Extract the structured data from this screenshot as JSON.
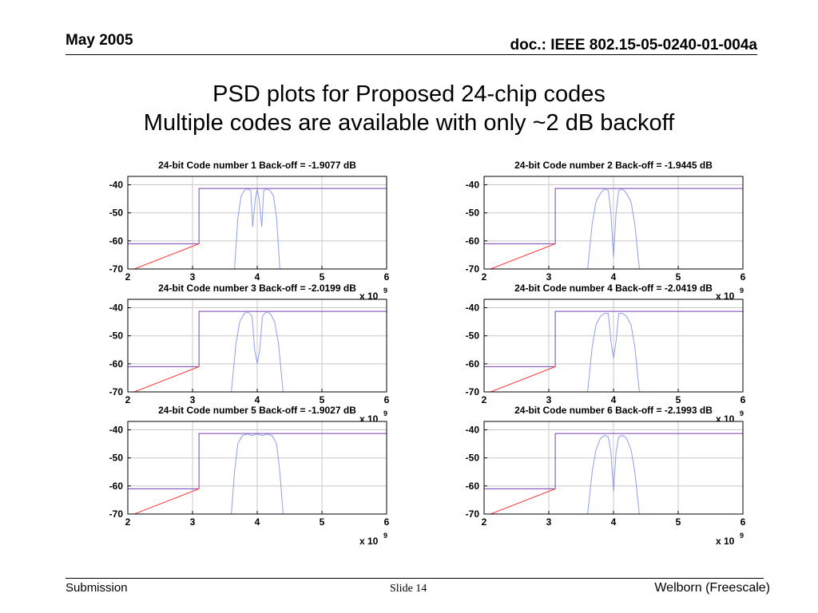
{
  "header": {
    "date": "May 2005",
    "doc": "doc.: IEEE 802.15-05-0240-01-004a"
  },
  "title": {
    "line1": "PSD plots for Proposed 24-chip codes",
    "line2": "Multiple codes are available with only ~2 dB backoff"
  },
  "footer": {
    "left": "Submission",
    "center": "Slide 14",
    "right": "Welborn (Freescale)"
  },
  "colors": {
    "psd": "#8f9ff0",
    "mask": "#7a3fb0",
    "slope": "#ff3b3b",
    "grid": "#c8c8c8"
  },
  "chart_data": [
    {
      "type": "line",
      "title": "24-bit Code number 1 Back-off = -1.9077 dB",
      "x_ticks": [
        2,
        3,
        4,
        5,
        6
      ],
      "y_ticks": [
        -40,
        -50,
        -60,
        -70
      ],
      "x_multiplier": "x 10",
      "x_exponent": "9",
      "xlim": [
        2,
        6
      ],
      "ylim": [
        -70,
        -37
      ],
      "grid": true,
      "series": [
        {
          "x": [
            2,
            3.1,
            3.1,
            6
          ],
          "y": [
            -61,
            -61,
            -41.3,
            -41.3
          ]
        },
        {
          "x": [
            2.1,
            3.1
          ],
          "y": [
            -70,
            -61
          ]
        },
        {
          "x": [
            3.65,
            3.7,
            3.75,
            3.8,
            3.85,
            3.9,
            3.93,
            3.97,
            4.0,
            4.03,
            4.07,
            4.1,
            4.15,
            4.2,
            4.25,
            4.3,
            4.35
          ],
          "y": [
            -70,
            -52,
            -44,
            -42,
            -41.5,
            -42,
            -55,
            -45,
            -41.5,
            -45,
            -55,
            -42,
            -41.5,
            -42,
            -44,
            -52,
            -70
          ]
        }
      ]
    },
    {
      "type": "line",
      "title": "24-bit Code number 2 Back-off = -1.9445 dB",
      "x_ticks": [
        2,
        3,
        4,
        5,
        6
      ],
      "y_ticks": [
        -40,
        -50,
        -60,
        -70
      ],
      "x_multiplier": "x 10",
      "x_exponent": "9",
      "xlim": [
        2,
        6
      ],
      "ylim": [
        -70,
        -37
      ],
      "grid": true,
      "series": [
        {
          "x": [
            2,
            3.1,
            3.1,
            6
          ],
          "y": [
            -61,
            -61,
            -41.3,
            -41.3
          ]
        },
        {
          "x": [
            2.1,
            3.1
          ],
          "y": [
            -70,
            -61
          ]
        },
        {
          "x": [
            3.6,
            3.67,
            3.73,
            3.8,
            3.86,
            3.92,
            3.96,
            4.0,
            4.04,
            4.08,
            4.14,
            4.2,
            4.27,
            4.33,
            4.4
          ],
          "y": [
            -70,
            -54,
            -46,
            -43,
            -41.5,
            -42,
            -50,
            -66,
            -50,
            -42,
            -41.5,
            -43,
            -46,
            -54,
            -70
          ]
        }
      ]
    },
    {
      "type": "line",
      "title": "24-bit Code number 3 Back-off = -2.0199 dB",
      "x_ticks": [
        2,
        3,
        4,
        5,
        6
      ],
      "y_ticks": [
        -40,
        -50,
        -60,
        -70
      ],
      "x_multiplier": "x 10",
      "x_exponent": "9",
      "xlim": [
        2,
        6
      ],
      "ylim": [
        -70,
        -37
      ],
      "grid": true,
      "series": [
        {
          "x": [
            2,
            3.1,
            3.1,
            6
          ],
          "y": [
            -61,
            -61,
            -41.3,
            -41.3
          ]
        },
        {
          "x": [
            2.1,
            3.1
          ],
          "y": [
            -70,
            -61
          ]
        },
        {
          "x": [
            3.6,
            3.67,
            3.73,
            3.8,
            3.86,
            3.92,
            3.96,
            4.0,
            4.04,
            4.08,
            4.14,
            4.2,
            4.27,
            4.33,
            4.4
          ],
          "y": [
            -70,
            -53,
            -45,
            -42,
            -41.5,
            -43,
            -55,
            -60,
            -55,
            -43,
            -41.5,
            -42,
            -45,
            -53,
            -70
          ]
        }
      ]
    },
    {
      "type": "line",
      "title": "24-bit Code number 4 Back-off = -2.0419 dB",
      "x_ticks": [
        2,
        3,
        4,
        5,
        6
      ],
      "y_ticks": [
        -40,
        -50,
        -60,
        -70
      ],
      "x_multiplier": "x 10",
      "x_exponent": "9",
      "xlim": [
        2,
        6
      ],
      "ylim": [
        -70,
        -37
      ],
      "grid": true,
      "series": [
        {
          "x": [
            2,
            3.1,
            3.1,
            6
          ],
          "y": [
            -61,
            -61,
            -41.3,
            -41.3
          ]
        },
        {
          "x": [
            2.1,
            3.1
          ],
          "y": [
            -70,
            -61
          ]
        },
        {
          "x": [
            3.6,
            3.67,
            3.73,
            3.8,
            3.86,
            3.92,
            3.96,
            4.0,
            4.04,
            4.08,
            4.14,
            4.2,
            4.27,
            4.33,
            4.4
          ],
          "y": [
            -70,
            -54,
            -46,
            -43,
            -42,
            -42,
            -52,
            -58,
            -52,
            -42,
            -42,
            -43,
            -46,
            -54,
            -70
          ]
        }
      ]
    },
    {
      "type": "line",
      "title": "24-bit Code number 5 Back-off = -1.9027 dB",
      "x_ticks": [
        2,
        3,
        4,
        5,
        6
      ],
      "y_ticks": [
        -40,
        -50,
        -60,
        -70
      ],
      "x_multiplier": "x 10",
      "x_exponent": "9",
      "xlim": [
        2,
        6
      ],
      "ylim": [
        -70,
        -37
      ],
      "grid": true,
      "series": [
        {
          "x": [
            2,
            3.1,
            3.1,
            6
          ],
          "y": [
            -61,
            -61,
            -41.3,
            -41.3
          ]
        },
        {
          "x": [
            2.1,
            3.1
          ],
          "y": [
            -70,
            -61
          ]
        },
        {
          "x": [
            3.6,
            3.65,
            3.7,
            3.77,
            3.85,
            3.92,
            4.0,
            4.08,
            4.15,
            4.23,
            4.3,
            4.35,
            4.4
          ],
          "y": [
            -70,
            -55,
            -45,
            -42,
            -41.5,
            -42,
            -41.5,
            -42,
            -41.5,
            -42,
            -45,
            -55,
            -70
          ]
        }
      ]
    },
    {
      "type": "line",
      "title": "24-bit Code number 6 Back-off = -2.1993 dB",
      "x_ticks": [
        2,
        3,
        4,
        5,
        6
      ],
      "y_ticks": [
        -40,
        -50,
        -60,
        -70
      ],
      "x_multiplier": "x 10",
      "x_exponent": "9",
      "xlim": [
        2,
        6
      ],
      "ylim": [
        -70,
        -37
      ],
      "grid": true,
      "series": [
        {
          "x": [
            2,
            3.1,
            3.1,
            6
          ],
          "y": [
            -61,
            -61,
            -41.3,
            -41.3
          ]
        },
        {
          "x": [
            2.1,
            3.1
          ],
          "y": [
            -70,
            -61
          ]
        },
        {
          "x": [
            3.6,
            3.67,
            3.73,
            3.8,
            3.86,
            3.92,
            3.96,
            4.0,
            4.04,
            4.08,
            4.14,
            4.2,
            4.27,
            4.33,
            4.4
          ],
          "y": [
            -70,
            -55,
            -47,
            -43,
            -42,
            -42.5,
            -48,
            -62,
            -48,
            -42.5,
            -42,
            -43,
            -47,
            -55,
            -70
          ]
        }
      ]
    }
  ]
}
